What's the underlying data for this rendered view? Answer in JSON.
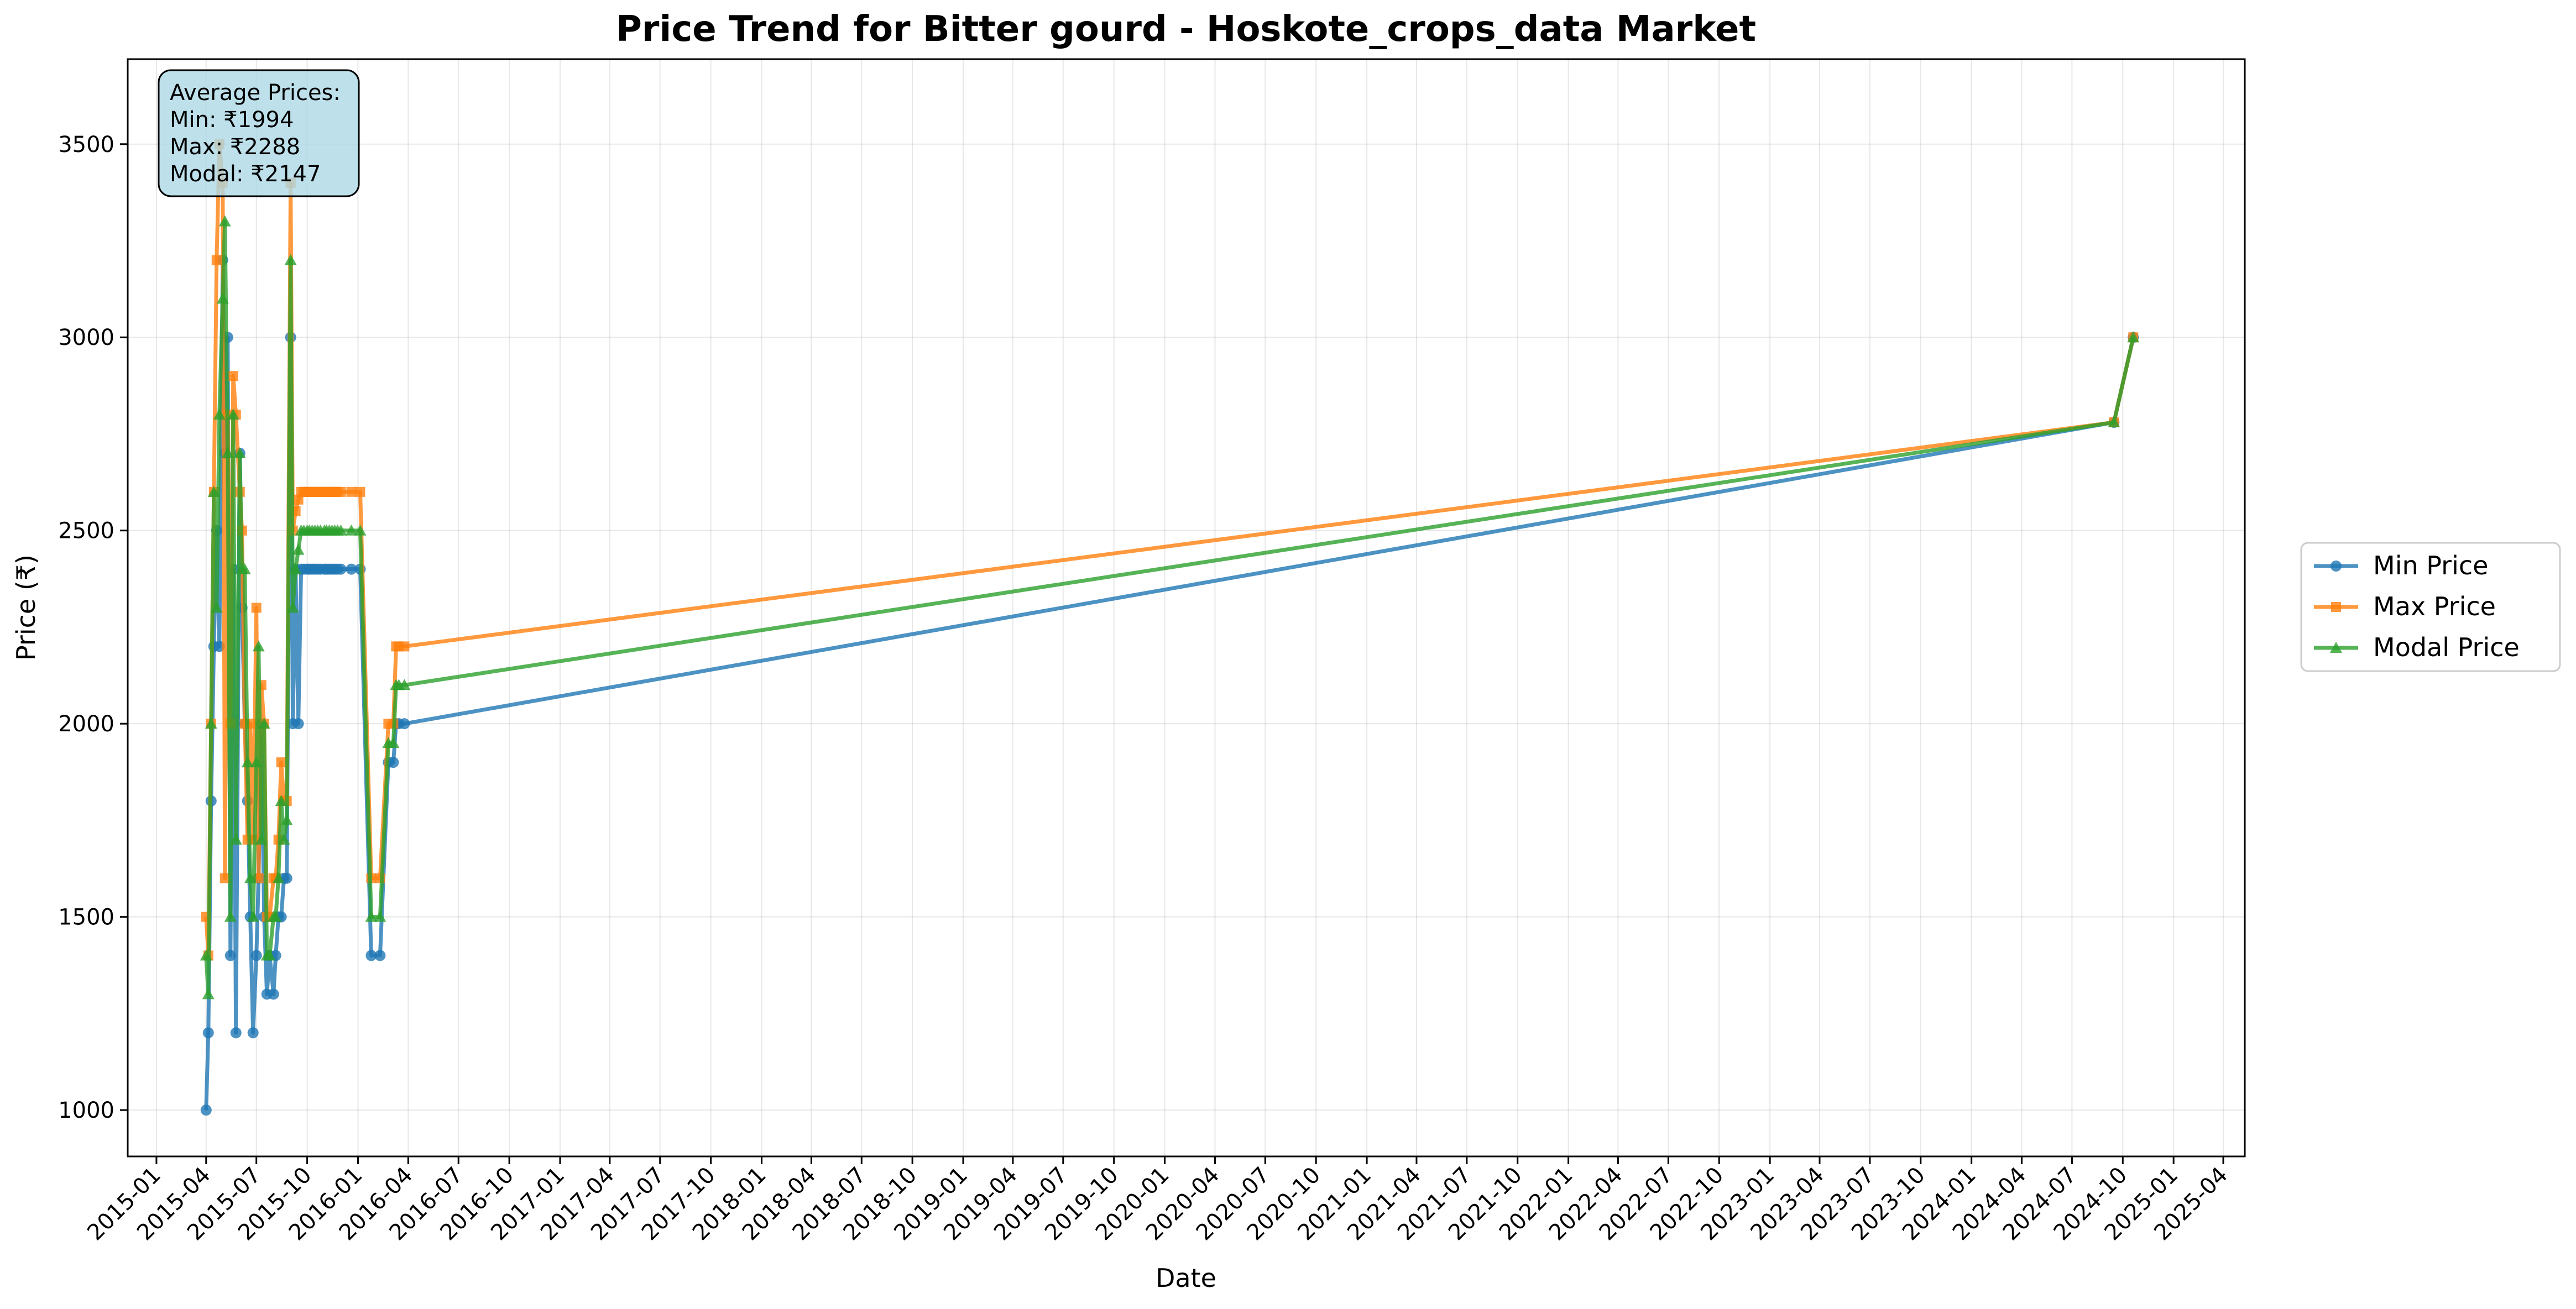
{
  "chart_data": {
    "type": "line",
    "title": "Price Trend for Bitter gourd - Hoskote_crops_data Market",
    "xlabel": "Date",
    "ylabel": "Price (₹)",
    "xlim": [
      "2014-11-10",
      "2025-05-10"
    ],
    "ylim": [
      880,
      3720
    ],
    "grid": true,
    "legend_position": "center-right outside",
    "x_ticks": [
      "2015-01",
      "2015-04",
      "2015-07",
      "2015-10",
      "2016-01",
      "2016-04",
      "2016-07",
      "2016-10",
      "2017-01",
      "2017-04",
      "2017-07",
      "2017-10",
      "2018-01",
      "2018-04",
      "2018-07",
      "2018-10",
      "2019-01",
      "2019-04",
      "2019-07",
      "2019-10",
      "2020-01",
      "2020-04",
      "2020-07",
      "2020-10",
      "2021-01",
      "2021-04",
      "2021-07",
      "2021-10",
      "2022-01",
      "2022-04",
      "2022-07",
      "2022-10",
      "2023-01",
      "2023-04",
      "2023-07",
      "2023-10",
      "2024-01",
      "2024-04",
      "2024-07",
      "2024-10",
      "2025-01",
      "2025-04"
    ],
    "y_ticks": [
      1000,
      1500,
      2000,
      2500,
      3000,
      3500
    ],
    "annotation": [
      "Average Prices:",
      "Min: ₹1994",
      "Max: ₹2288",
      "Modal: ₹2147"
    ],
    "x": [
      "2015-04-01",
      "2015-04-05",
      "2015-04-10",
      "2015-04-15",
      "2015-04-20",
      "2015-04-25",
      "2015-05-01",
      "2015-05-05",
      "2015-05-10",
      "2015-05-15",
      "2015-05-20",
      "2015-05-25",
      "2015-06-01",
      "2015-06-05",
      "2015-06-10",
      "2015-06-15",
      "2015-06-20",
      "2015-06-25",
      "2015-07-01",
      "2015-07-05",
      "2015-07-10",
      "2015-07-15",
      "2015-07-20",
      "2015-07-25",
      "2015-08-01",
      "2015-08-05",
      "2015-08-10",
      "2015-08-15",
      "2015-08-20",
      "2015-08-25",
      "2015-09-01",
      "2015-09-05",
      "2015-09-10",
      "2015-09-15",
      "2015-09-20",
      "2015-09-25",
      "2015-10-01",
      "2015-10-05",
      "2015-10-10",
      "2015-10-15",
      "2015-10-20",
      "2015-10-25",
      "2015-11-01",
      "2015-11-05",
      "2015-11-10",
      "2015-11-15",
      "2015-11-20",
      "2015-11-25",
      "2015-12-01",
      "2015-12-20",
      "2016-01-05",
      "2016-01-25",
      "2016-02-10",
      "2016-02-25",
      "2016-03-05",
      "2016-03-10",
      "2016-03-15",
      "2016-03-25",
      "2024-09-15",
      "2024-10-20"
    ],
    "series": [
      {
        "name": "Min Price",
        "color": "#1f77b4",
        "marker": "circle",
        "values": [
          1000,
          1200,
          1800,
          2200,
          2500,
          2200,
          3200,
          2700,
          3000,
          1400,
          2400,
          1200,
          2700,
          2300,
          2000,
          1800,
          1500,
          1200,
          1400,
          1600,
          2000,
          1500,
          1300,
          1400,
          1300,
          1400,
          1500,
          1500,
          1600,
          1600,
          3000,
          2000,
          2400,
          2000,
          2400,
          2400,
          2400,
          2400,
          2400,
          2400,
          2400,
          2400,
          2400,
          2400,
          2400,
          2400,
          2400,
          2400,
          2400,
          2400,
          2400,
          1400,
          1400,
          1900,
          1900,
          2000,
          2000,
          2000,
          2780,
          3000
        ]
      },
      {
        "name": "Max Price",
        "color": "#ff7f0e",
        "marker": "square",
        "values": [
          1500,
          1400,
          2000,
          2600,
          3200,
          3500,
          3400,
          1600,
          2800,
          2000,
          2900,
          2800,
          2600,
          2500,
          2000,
          1700,
          2000,
          1700,
          2300,
          1600,
          2100,
          2000,
          1500,
          1500,
          1600,
          1600,
          1700,
          1900,
          1800,
          1800,
          3400,
          2500,
          2550,
          2580,
          2600,
          2600,
          2600,
          2600,
          2600,
          2600,
          2600,
          2600,
          2600,
          2600,
          2600,
          2600,
          2600,
          2600,
          2600,
          2600,
          2600,
          1600,
          1600,
          2000,
          2000,
          2200,
          2200,
          2200,
          2780,
          3000
        ]
      },
      {
        "name": "Modal Price",
        "color": "#2ca02c",
        "marker": "triangle",
        "values": [
          1400,
          1300,
          2000,
          2600,
          2300,
          2800,
          3100,
          3300,
          2700,
          1500,
          2800,
          1700,
          2700,
          2400,
          2400,
          1900,
          1600,
          1500,
          1900,
          2200,
          1700,
          2000,
          1400,
          1400,
          1500,
          1500,
          1600,
          1800,
          1700,
          1750,
          3200,
          2300,
          2400,
          2450,
          2500,
          2500,
          2500,
          2500,
          2500,
          2500,
          2500,
          2500,
          2500,
          2500,
          2500,
          2500,
          2500,
          2500,
          2500,
          2500,
          2500,
          1500,
          1500,
          1950,
          1950,
          2100,
          2100,
          2100,
          2780,
          3000
        ]
      }
    ]
  }
}
